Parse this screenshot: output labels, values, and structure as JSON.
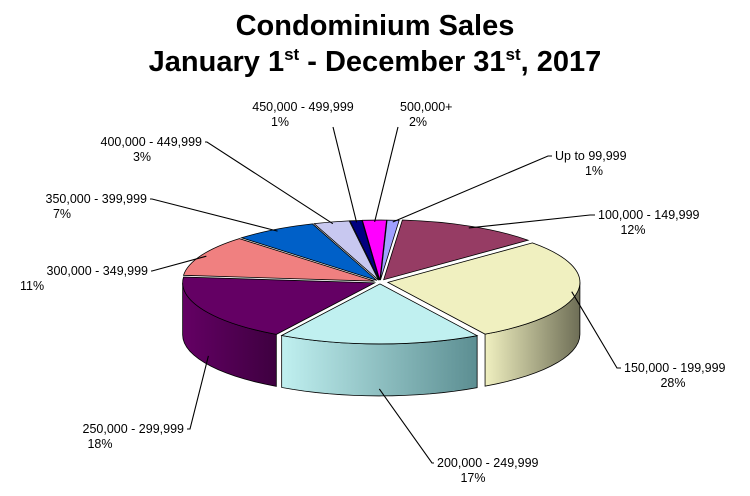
{
  "title": {
    "line1": "Condominium Sales",
    "line2_pre": "January 1",
    "line2_sup1": "st",
    "line2_mid": " - December 31",
    "line2_sup2": "st",
    "line2_post": ", 2017"
  },
  "chart_data": {
    "type": "pie",
    "style": "3d-exploded",
    "title": "Condominium Sales January 1st - December 31st, 2017",
    "unit": "%",
    "categories": [
      "Up to 99,999",
      "100,000 - 149,999",
      "150,000 - 199,999",
      "200,000 - 249,999",
      "250,000 - 299,999",
      "300,000 - 349,999",
      "350,000 - 399,999",
      "400,000 - 449,999",
      "450,000 - 499,999",
      "500,000+"
    ],
    "values": [
      1,
      12,
      28,
      17,
      18,
      11,
      7,
      3,
      1,
      2
    ],
    "value_labels": [
      "1%",
      "12%",
      "28%",
      "17%",
      "18%",
      "11%",
      "7%",
      "3%",
      "1%",
      "2%"
    ],
    "colors": [
      "#a0a0ff",
      "#963c64",
      "#f0f0c0",
      "#c0f0f0",
      "#640064",
      "#f08080",
      "#0060c8",
      "#c8c8f0",
      "#000080",
      "#ff00ff"
    ],
    "side_colors": [
      "#7070c0",
      "#5a1e3e",
      "#6e6e56",
      "#5c8e92",
      "#3e0040",
      "#a05050",
      "#00408a",
      "#8c8cb4",
      "#000050",
      "#b000b0"
    ],
    "legend": "none"
  }
}
